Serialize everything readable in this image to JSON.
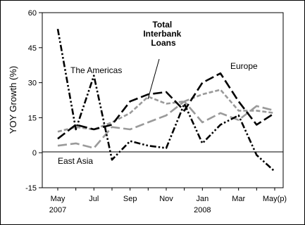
{
  "chart_data": {
    "type": "line",
    "title": "",
    "xlabel": "",
    "ylabel": "YOY Growth (%)",
    "ylim": [
      -15,
      60
    ],
    "yticks": [
      -15,
      0,
      15,
      30,
      45,
      60
    ],
    "grid": false,
    "legend": "none",
    "categories": [
      "May 2007",
      "Jun 2007",
      "Jul 2007",
      "Aug 2007",
      "Sep 2007",
      "Oct 2007",
      "Nov 2007",
      "Dec 2007",
      "Jan 2008",
      "Feb 2008",
      "Mar 2008",
      "Apr 2008",
      "May(p) 2008"
    ],
    "xtick_labels": [
      {
        "index": 0,
        "label": "May",
        "year": "2007"
      },
      {
        "index": 2,
        "label": "Jul",
        "year": ""
      },
      {
        "index": 4,
        "label": "Sep",
        "year": ""
      },
      {
        "index": 6,
        "label": "Nov",
        "year": ""
      },
      {
        "index": 8,
        "label": "Jan",
        "year": "2008"
      },
      {
        "index": 10,
        "label": "Mar",
        "year": ""
      },
      {
        "index": 12,
        "label": "May(p)",
        "year": ""
      }
    ],
    "series": [
      {
        "name": "The Americas",
        "style": "dash-dot-dot",
        "color": "#000000",
        "values": [
          53,
          10,
          33,
          -3,
          5,
          3,
          2,
          21,
          4,
          12,
          16,
          -1,
          -8
        ]
      },
      {
        "name": "Europe",
        "style": "long-dash",
        "color": "#000000",
        "values": [
          6,
          12,
          10,
          12,
          22,
          25,
          26,
          18,
          30,
          34,
          22,
          12,
          17
        ]
      },
      {
        "name": "Total Interbank Loans",
        "style": "short-dash",
        "color": "#9a9a9a",
        "values": [
          9,
          11,
          10,
          13,
          17,
          24,
          21,
          22,
          25,
          27,
          18,
          18,
          17
        ]
      },
      {
        "name": "East Asia",
        "style": "long-dash",
        "color": "#9a9a9a",
        "values": [
          3,
          4,
          2,
          11,
          10,
          13,
          16,
          22,
          13,
          17,
          14,
          20,
          18
        ]
      }
    ],
    "annotations": [
      {
        "text_lines": [
          "Total",
          "Interbank",
          "Loans"
        ]
      },
      {
        "text_lines": [
          "The Americas"
        ]
      },
      {
        "text_lines": [
          "Europe"
        ]
      },
      {
        "text_lines": [
          "East Asia"
        ]
      }
    ]
  }
}
